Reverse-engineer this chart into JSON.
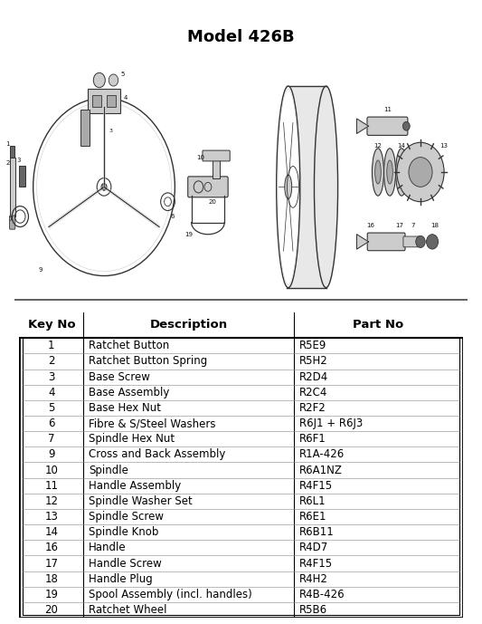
{
  "title": "Model 426B",
  "title_fontsize": 13,
  "title_fontweight": "bold",
  "table_headers": [
    "Key No",
    "Description",
    "Part No"
  ],
  "table_rows": [
    [
      "1",
      "Ratchet Button",
      "R5E9"
    ],
    [
      "2",
      "Ratchet Button Spring",
      "R5H2"
    ],
    [
      "3",
      "Base Screw",
      "R2D4"
    ],
    [
      "4",
      "Base Assembly",
      "R2C4"
    ],
    [
      "5",
      "Base Hex Nut",
      "R2F2"
    ],
    [
      "6",
      "Fibre & S/Steel Washers",
      "R6J1 + R6J3"
    ],
    [
      "7",
      "Spindle Hex Nut",
      "R6F1"
    ],
    [
      "9",
      "Cross and Back Assembly",
      "R1A-426"
    ],
    [
      "10",
      "Spindle",
      "R6A1NZ"
    ],
    [
      "11",
      "Handle Assembly",
      "R4F15"
    ],
    [
      "12",
      "Spindle Washer Set",
      "R6L1"
    ],
    [
      "13",
      "Spindle Screw",
      "R6E1"
    ],
    [
      "14",
      "Spindle Knob",
      "R6B11"
    ],
    [
      "16",
      "Handle",
      "R4D7"
    ],
    [
      "17",
      "Handle Screw",
      "R4F15"
    ],
    [
      "18",
      "Handle Plug",
      "R4H2"
    ],
    [
      "19",
      "Spool Assembly (incl. handles)",
      "R4B-426"
    ],
    [
      "20",
      "Ratchet Wheel",
      "R5B6"
    ]
  ],
  "background_color": "#ffffff",
  "fig_width": 5.33,
  "fig_height": 6.89,
  "line_color": "#333333",
  "dark_color": "#111111",
  "mid_color": "#666666",
  "light_color": "#aaaaaa",
  "lighter_color": "#cccccc",
  "lightest_color": "#e8e8e8"
}
